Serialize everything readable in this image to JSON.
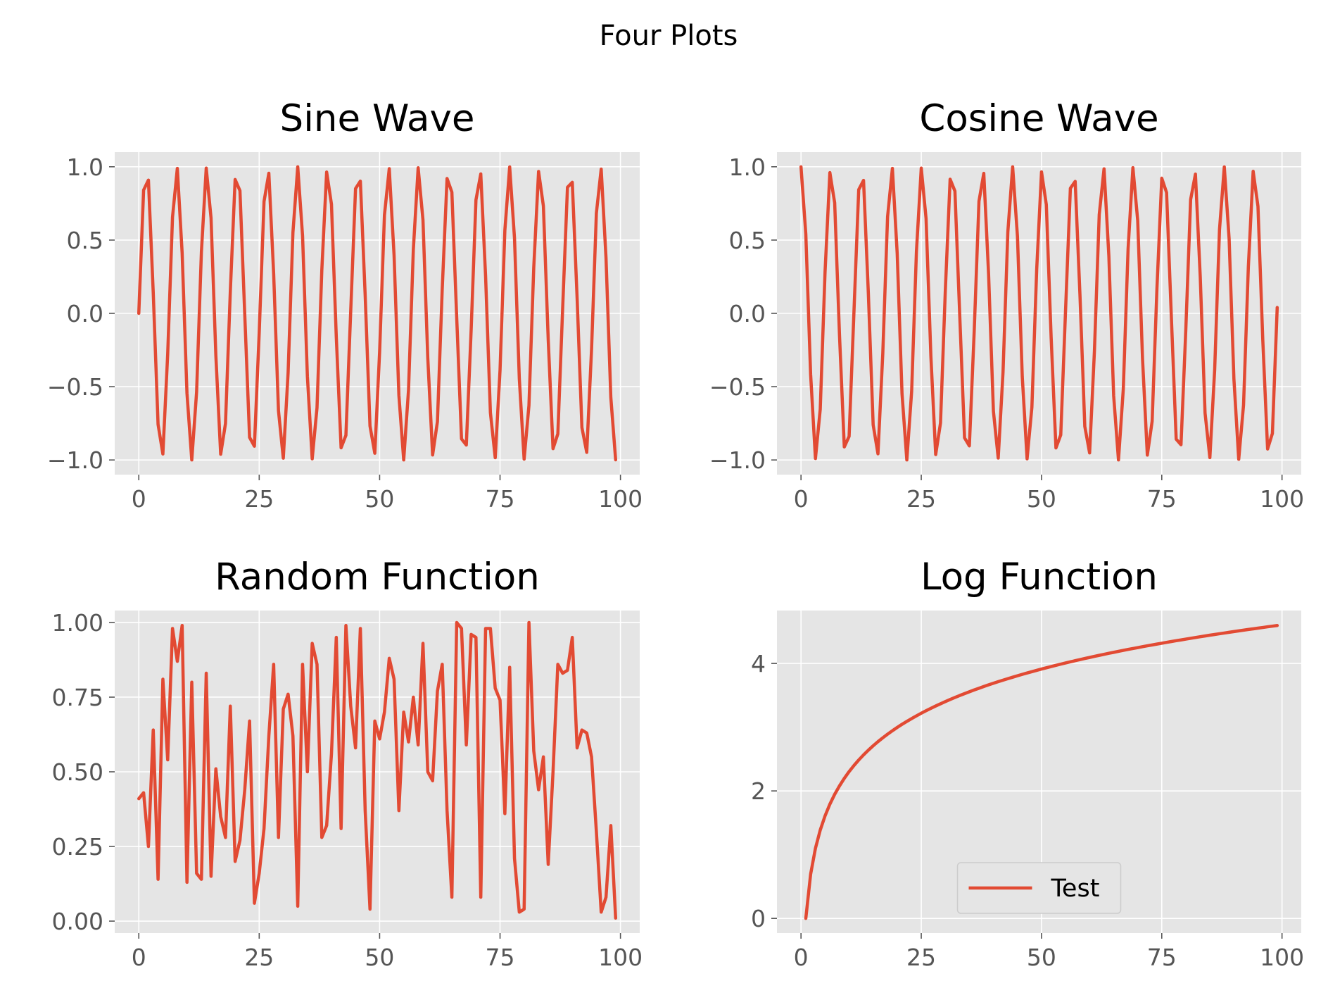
{
  "figure": {
    "suptitle": "Four Plots",
    "line_color": "#e24a33"
  },
  "chart_data": [
    {
      "id": "sine",
      "type": "line",
      "title": "Sine Wave",
      "xlim": [
        -5,
        104
      ],
      "ylim": [
        -1.1,
        1.1
      ],
      "xticks": [
        {
          "v": 0,
          "label": "0"
        },
        {
          "v": 25,
          "label": "25"
        },
        {
          "v": 50,
          "label": "50"
        },
        {
          "v": 75,
          "label": "75"
        },
        {
          "v": 100,
          "label": "100"
        }
      ],
      "yticks": [
        {
          "v": 1,
          "label": "1.0"
        },
        {
          "v": 0.5,
          "label": "0.5"
        },
        {
          "v": 0,
          "label": "0.0"
        },
        {
          "v": -0.5,
          "label": "−0.5"
        },
        {
          "v": -1,
          "label": "−1.0"
        }
      ],
      "grid": true,
      "series": [
        {
          "x": [
            0,
            1,
            2,
            3,
            4,
            5,
            6,
            7,
            8,
            9,
            10,
            11,
            12,
            13,
            14,
            15,
            16,
            17,
            18,
            19,
            20,
            21,
            22,
            23,
            24,
            25,
            26,
            27,
            28,
            29,
            30,
            31,
            32,
            33,
            34,
            35,
            36,
            37,
            38,
            39,
            40,
            41,
            42,
            43,
            44,
            45,
            46,
            47,
            48,
            49,
            50,
            51,
            52,
            53,
            54,
            55,
            56,
            57,
            58,
            59,
            60,
            61,
            62,
            63,
            64,
            65,
            66,
            67,
            68,
            69,
            70,
            71,
            72,
            73,
            74,
            75,
            76,
            77,
            78,
            79,
            80,
            81,
            82,
            83,
            84,
            85,
            86,
            87,
            88,
            89,
            90,
            91,
            92,
            93,
            94,
            95,
            96,
            97,
            98,
            99
          ],
          "y": [
            0.0,
            0.841,
            0.909,
            0.141,
            -0.757,
            -0.959,
            -0.279,
            0.657,
            0.989,
            0.412,
            -0.544,
            -1.0,
            -0.537,
            0.42,
            0.991,
            0.65,
            -0.288,
            -0.961,
            -0.751,
            0.15,
            0.913,
            0.837,
            -0.009,
            -0.846,
            -0.906,
            -0.132,
            0.763,
            0.956,
            0.271,
            -0.664,
            -0.988,
            -0.404,
            0.551,
            1.0,
            0.529,
            -0.428,
            -0.992,
            -0.644,
            0.296,
            0.964,
            0.745,
            -0.159,
            -0.917,
            -0.832,
            0.018,
            0.851,
            0.902,
            0.124,
            -0.768,
            -0.954,
            -0.262,
            0.67,
            0.987,
            0.396,
            -0.559,
            -1.0,
            -0.522,
            0.436,
            0.993,
            0.637,
            -0.305,
            -0.966,
            -0.739,
            0.167,
            0.92,
            0.827,
            -0.027,
            -0.856,
            -0.898,
            -0.115,
            0.774,
            0.951,
            0.254,
            -0.677,
            -0.985,
            -0.388,
            0.566,
            0.999,
            0.514,
            -0.444,
            -0.994,
            -0.629,
            0.313,
            0.968,
            0.733,
            -0.176,
            -0.923,
            -0.822,
            0.035,
            0.86,
            0.894,
            0.106,
            -0.779,
            -0.948,
            -0.245,
            0.683,
            0.984,
            0.38,
            -0.573,
            -0.999
          ]
        }
      ]
    },
    {
      "id": "cosine",
      "type": "line",
      "title": "Cosine Wave",
      "xlim": [
        -5,
        104
      ],
      "ylim": [
        -1.1,
        1.1
      ],
      "xticks": [
        {
          "v": 0,
          "label": "0"
        },
        {
          "v": 25,
          "label": "25"
        },
        {
          "v": 50,
          "label": "50"
        },
        {
          "v": 75,
          "label": "75"
        },
        {
          "v": 100,
          "label": "100"
        }
      ],
      "yticks": [
        {
          "v": 1,
          "label": "1.0"
        },
        {
          "v": 0.5,
          "label": "0.5"
        },
        {
          "v": 0,
          "label": "0.0"
        },
        {
          "v": -0.5,
          "label": "−0.5"
        },
        {
          "v": -1,
          "label": "−1.0"
        }
      ],
      "grid": true,
      "series": [
        {
          "x": [
            0,
            1,
            2,
            3,
            4,
            5,
            6,
            7,
            8,
            9,
            10,
            11,
            12,
            13,
            14,
            15,
            16,
            17,
            18,
            19,
            20,
            21,
            22,
            23,
            24,
            25,
            26,
            27,
            28,
            29,
            30,
            31,
            32,
            33,
            34,
            35,
            36,
            37,
            38,
            39,
            40,
            41,
            42,
            43,
            44,
            45,
            46,
            47,
            48,
            49,
            50,
            51,
            52,
            53,
            54,
            55,
            56,
            57,
            58,
            59,
            60,
            61,
            62,
            63,
            64,
            65,
            66,
            67,
            68,
            69,
            70,
            71,
            72,
            73,
            74,
            75,
            76,
            77,
            78,
            79,
            80,
            81,
            82,
            83,
            84,
            85,
            86,
            87,
            88,
            89,
            90,
            91,
            92,
            93,
            94,
            95,
            96,
            97,
            98,
            99
          ],
          "y": [
            1.0,
            0.54,
            -0.416,
            -0.99,
            -0.654,
            0.284,
            0.96,
            0.754,
            -0.146,
            -0.911,
            -0.839,
            0.004,
            0.844,
            0.907,
            0.137,
            -0.76,
            -0.958,
            -0.275,
            0.66,
            0.989,
            0.408,
            -0.548,
            -1.0,
            -0.533,
            0.424,
            0.991,
            0.647,
            -0.292,
            -0.963,
            -0.748,
            0.154,
            0.915,
            0.834,
            -0.013,
            -0.849,
            -0.904,
            -0.128,
            0.765,
            0.955,
            0.267,
            -0.667,
            -0.987,
            -0.4,
            0.555,
            1.0,
            0.525,
            -0.432,
            -0.992,
            -0.64,
            0.3,
            0.965,
            0.742,
            -0.163,
            -0.918,
            -0.829,
            0.022,
            0.853,
            0.9,
            0.12,
            -0.771,
            -0.952,
            -0.258,
            0.674,
            0.986,
            0.392,
            -0.562,
            -1.0,
            -0.518,
            0.44,
            0.994,
            0.633,
            -0.309,
            -0.967,
            -0.736,
            0.172,
            0.922,
            0.824,
            -0.031,
            -0.858,
            -0.896,
            -0.11,
            0.776,
            0.95,
            0.25,
            -0.68,
            -0.984,
            -0.384,
            0.57,
            0.999,
            0.51,
            -0.448,
            -0.995,
            -0.626,
            0.317,
            0.969,
            0.73,
            -0.18,
            -0.925,
            -0.819,
            0.04
          ]
        }
      ]
    },
    {
      "id": "random",
      "type": "line",
      "title": "Random Function",
      "xlim": [
        -5,
        104
      ],
      "ylim": [
        -0.04,
        1.04
      ],
      "xticks": [
        {
          "v": 0,
          "label": "0"
        },
        {
          "v": 25,
          "label": "25"
        },
        {
          "v": 50,
          "label": "50"
        },
        {
          "v": 75,
          "label": "75"
        },
        {
          "v": 100,
          "label": "100"
        }
      ],
      "yticks": [
        {
          "v": 1,
          "label": "1.00"
        },
        {
          "v": 0.75,
          "label": "0.75"
        },
        {
          "v": 0.5,
          "label": "0.50"
        },
        {
          "v": 0.25,
          "label": "0.25"
        },
        {
          "v": 0,
          "label": "0.00"
        }
      ],
      "grid": true,
      "series": [
        {
          "x": [
            0,
            1,
            2,
            3,
            4,
            5,
            6,
            7,
            8,
            9,
            10,
            11,
            12,
            13,
            14,
            15,
            16,
            17,
            18,
            19,
            20,
            21,
            22,
            23,
            24,
            25,
            26,
            27,
            28,
            29,
            30,
            31,
            32,
            33,
            34,
            35,
            36,
            37,
            38,
            39,
            40,
            41,
            42,
            43,
            44,
            45,
            46,
            47,
            48,
            49,
            50,
            51,
            52,
            53,
            54,
            55,
            56,
            57,
            58,
            59,
            60,
            61,
            62,
            63,
            64,
            65,
            66,
            67,
            68,
            69,
            70,
            71,
            72,
            73,
            74,
            75,
            76,
            77,
            78,
            79,
            80,
            81,
            82,
            83,
            84,
            85,
            86,
            87,
            88,
            89,
            90,
            91,
            92,
            93,
            94,
            95,
            96,
            97,
            98,
            99
          ],
          "y": [
            0.41,
            0.43,
            0.25,
            0.64,
            0.14,
            0.81,
            0.54,
            0.98,
            0.87,
            0.99,
            0.13,
            0.8,
            0.16,
            0.14,
            0.83,
            0.15,
            0.51,
            0.35,
            0.28,
            0.72,
            0.2,
            0.27,
            0.44,
            0.67,
            0.06,
            0.16,
            0.31,
            0.62,
            0.86,
            0.28,
            0.71,
            0.76,
            0.62,
            0.05,
            0.86,
            0.5,
            0.93,
            0.86,
            0.28,
            0.32,
            0.56,
            0.95,
            0.31,
            0.99,
            0.72,
            0.58,
            0.98,
            0.37,
            0.04,
            0.67,
            0.61,
            0.7,
            0.88,
            0.81,
            0.37,
            0.7,
            0.6,
            0.75,
            0.59,
            0.93,
            0.5,
            0.47,
            0.77,
            0.86,
            0.37,
            0.08,
            1.0,
            0.98,
            0.59,
            0.96,
            0.95,
            0.08,
            0.98,
            0.98,
            0.78,
            0.74,
            0.36,
            0.85,
            0.21,
            0.03,
            0.04,
            1.0,
            0.57,
            0.44,
            0.55,
            0.19,
            0.5,
            0.86,
            0.83,
            0.84,
            0.95,
            0.58,
            0.64,
            0.63,
            0.55,
            0.3,
            0.03,
            0.08,
            0.32,
            0.01
          ]
        }
      ]
    },
    {
      "id": "log",
      "type": "line",
      "title": "Log Function",
      "xlim": [
        -5,
        104
      ],
      "ylim": [
        -0.23,
        4.83
      ],
      "xticks": [
        {
          "v": 0,
          "label": "0"
        },
        {
          "v": 25,
          "label": "25"
        },
        {
          "v": 50,
          "label": "50"
        },
        {
          "v": 75,
          "label": "75"
        },
        {
          "v": 100,
          "label": "100"
        }
      ],
      "yticks": [
        {
          "v": 4,
          "label": "4"
        },
        {
          "v": 2,
          "label": "2"
        },
        {
          "v": 0,
          "label": "0"
        }
      ],
      "grid": true,
      "legend": {
        "position": "lower-center",
        "entries": [
          "Test"
        ]
      },
      "series": [
        {
          "name": "Test",
          "x": [
            1,
            2,
            3,
            4,
            5,
            6,
            7,
            8,
            9,
            10,
            11,
            12,
            13,
            14,
            15,
            16,
            17,
            18,
            19,
            20,
            21,
            22,
            23,
            24,
            25,
            26,
            27,
            28,
            29,
            30,
            31,
            32,
            33,
            34,
            35,
            36,
            37,
            38,
            39,
            40,
            41,
            42,
            43,
            44,
            45,
            46,
            47,
            48,
            49,
            50,
            51,
            52,
            53,
            54,
            55,
            56,
            57,
            58,
            59,
            60,
            61,
            62,
            63,
            64,
            65,
            66,
            67,
            68,
            69,
            70,
            71,
            72,
            73,
            74,
            75,
            76,
            77,
            78,
            79,
            80,
            81,
            82,
            83,
            84,
            85,
            86,
            87,
            88,
            89,
            90,
            91,
            92,
            93,
            94,
            95,
            96,
            97,
            98,
            99
          ],
          "y": [
            0.0,
            0.693,
            1.099,
            1.386,
            1.609,
            1.792,
            1.946,
            2.079,
            2.197,
            2.303,
            2.398,
            2.485,
            2.565,
            2.639,
            2.708,
            2.773,
            2.833,
            2.89,
            2.944,
            2.996,
            3.045,
            3.091,
            3.135,
            3.178,
            3.219,
            3.258,
            3.296,
            3.332,
            3.367,
            3.401,
            3.434,
            3.466,
            3.497,
            3.526,
            3.555,
            3.584,
            3.611,
            3.638,
            3.664,
            3.689,
            3.714,
            3.738,
            3.761,
            3.784,
            3.807,
            3.829,
            3.85,
            3.871,
            3.892,
            3.912,
            3.932,
            3.951,
            3.97,
            3.989,
            4.007,
            4.025,
            4.043,
            4.06,
            4.078,
            4.094,
            4.111,
            4.127,
            4.143,
            4.159,
            4.174,
            4.19,
            4.205,
            4.22,
            4.234,
            4.248,
            4.263,
            4.277,
            4.29,
            4.304,
            4.317,
            4.331,
            4.344,
            4.357,
            4.369,
            4.382,
            4.394,
            4.407,
            4.419,
            4.431,
            4.443,
            4.454,
            4.466,
            4.477,
            4.489,
            4.5,
            4.511,
            4.522,
            4.533,
            4.543,
            4.554,
            4.564,
            4.575,
            4.585,
            4.595
          ]
        }
      ]
    }
  ]
}
